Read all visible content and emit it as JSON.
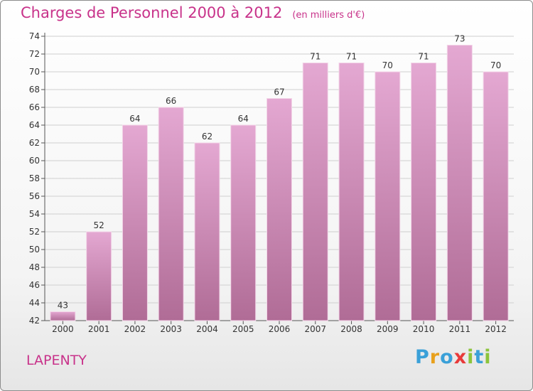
{
  "title": "Charges de Personnel 2000 à 2012",
  "subtitle": "(en milliers d'€)",
  "location": "LAPENTY",
  "logo": {
    "text": "Proxiti",
    "letters": [
      {
        "ch": "P",
        "color": "#3aa0d8"
      },
      {
        "ch": "r",
        "color": "#e8a01c"
      },
      {
        "ch": "o",
        "color": "#3aa0d8"
      },
      {
        "ch": "x",
        "color": "#e83a3a"
      },
      {
        "ch": "i",
        "color": "#8cc43c"
      },
      {
        "ch": "t",
        "color": "#3aa0d8"
      },
      {
        "ch": "i",
        "color": "#8cc43c"
      }
    ]
  },
  "colors": {
    "title": "#c8328a",
    "bar_top": "#e4a8d2",
    "bar_bottom": "#b06c96",
    "grid": "#cfcfcf",
    "axis_text": "#333333"
  },
  "chart_data": {
    "type": "bar",
    "title": "Charges de Personnel 2000 à 2012",
    "subtitle": "(en milliers d'€)",
    "xlabel": "",
    "ylabel": "",
    "categories": [
      "2000",
      "2001",
      "2002",
      "2003",
      "2004",
      "2005",
      "2006",
      "2007",
      "2008",
      "2009",
      "2010",
      "2011",
      "2012"
    ],
    "values": [
      43,
      52,
      64,
      66,
      62,
      64,
      67,
      71,
      71,
      70,
      71,
      73,
      70
    ],
    "ylim": [
      42,
      74
    ],
    "yticks": [
      42,
      44,
      46,
      48,
      50,
      52,
      54,
      56,
      58,
      60,
      62,
      64,
      66,
      68,
      70,
      72,
      74
    ],
    "grid": true,
    "legend": "none"
  }
}
